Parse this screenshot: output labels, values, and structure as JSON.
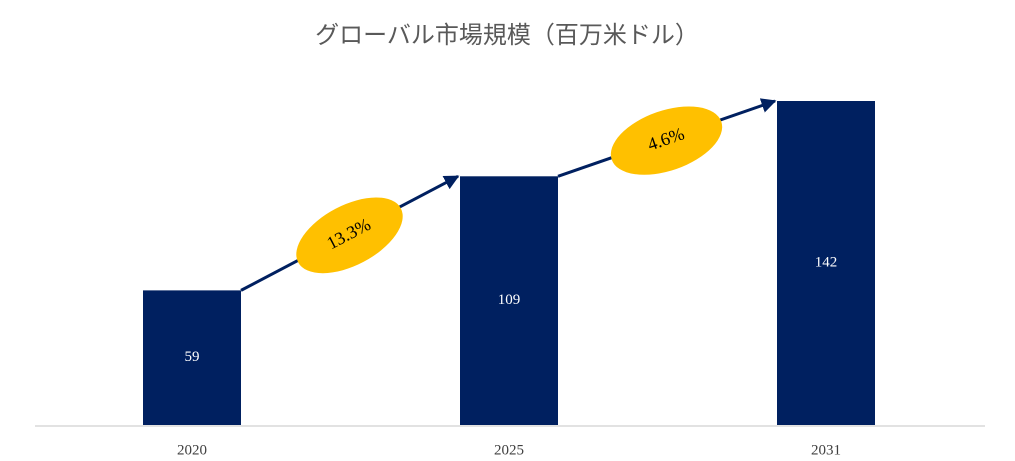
{
  "chart_data": {
    "type": "bar",
    "title": "グローバル市場規模（百万米ドル）",
    "categories": [
      "2020",
      "2025",
      "2031"
    ],
    "values": [
      59,
      109,
      142
    ],
    "color": "#002060",
    "annotations": [
      "13.3%",
      "4.6%"
    ],
    "annotation_color": "#ffc000"
  }
}
